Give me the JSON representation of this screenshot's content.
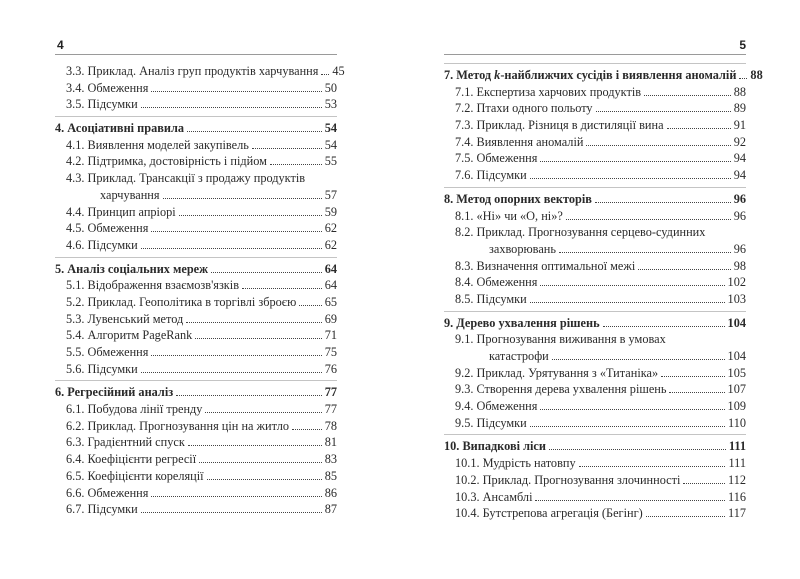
{
  "pages": [
    {
      "folio": "4",
      "sections": [
        {
          "continued": true,
          "items": [
            {
              "title": "3.3. Приклад. Аналіз груп продуктів харчування",
              "page": "45"
            },
            {
              "title": "3.4. Обмеження",
              "page": "50"
            },
            {
              "title": "3.5. Підсумки",
              "page": "53"
            }
          ]
        },
        {
          "heading": {
            "title": "4.  Асоціативні правила",
            "page": "54"
          },
          "items": [
            {
              "title": "4.1. Виявлення моделей закупівель",
              "page": "54"
            },
            {
              "title": "4.2. Підтримка, достовірність і підйом",
              "page": "55"
            },
            {
              "title": "4.3. Приклад. Трансакції з продажу продуктів",
              "title2": "харчування",
              "page": "57"
            },
            {
              "title": "4.4. Принцип апріорі",
              "page": "59"
            },
            {
              "title": "4.5. Обмеження",
              "page": "62"
            },
            {
              "title": "4.6. Підсумки",
              "page": "62"
            }
          ]
        },
        {
          "heading": {
            "title": "5.  Аналіз соціальних мереж",
            "page": "64"
          },
          "items": [
            {
              "title": "5.1. Відображення взаємозв'язків",
              "page": "64"
            },
            {
              "title": "5.2. Приклад. Геополітика в торгівлі зброєю",
              "page": "65"
            },
            {
              "title": "5.3. Лувенський метод",
              "page": "69"
            },
            {
              "title": "5.4. Алгоритм PageRank",
              "page": "71"
            },
            {
              "title": "5.5. Обмеження",
              "page": "75"
            },
            {
              "title": "5.6. Підсумки",
              "page": "76"
            }
          ]
        },
        {
          "heading": {
            "title": "6.  Регресійний аналіз",
            "page": "77"
          },
          "items": [
            {
              "title": "6.1. Побудова лінії тренду",
              "page": "77"
            },
            {
              "title": "6.2. Приклад. Прогнозування цін на житло",
              "page": "78"
            },
            {
              "title": "6.3. Градієнтний спуск",
              "page": "81"
            },
            {
              "title": "6.4. Коефіцієнти регресії",
              "page": "83"
            },
            {
              "title": "6.5. Коефіцієнти кореляції",
              "page": "85"
            },
            {
              "title": "6.6. Обмеження",
              "page": "86"
            },
            {
              "title": "6.7. Підсумки",
              "page": "87"
            }
          ]
        }
      ]
    },
    {
      "folio": "5",
      "sections": [
        {
          "heading": {
            "title": "7.  Метод ",
            "title_em": "k",
            "title_rest": "-найближчих сусідів і виявлення аномалій",
            "page": "88"
          },
          "items": [
            {
              "title": "7.1. Експертиза харчових продуктів",
              "page": "88"
            },
            {
              "title": "7.2. Птахи одного польоту",
              "page": "89"
            },
            {
              "title": "7.3. Приклад. Різниця в дистиляції вина",
              "page": "91"
            },
            {
              "title": "7.4. Виявлення аномалій",
              "page": "92"
            },
            {
              "title": "7.5. Обмеження",
              "page": "94"
            },
            {
              "title": "7.6. Підсумки",
              "page": "94"
            }
          ]
        },
        {
          "heading": {
            "title": "8.  Метод опорних векторів",
            "page": "96"
          },
          "items": [
            {
              "title": "8.1. «Ні» чи «О, ні»?",
              "page": "96"
            },
            {
              "title": "8.2. Приклад. Прогнозування серцево-судинних",
              "title2": "захворювань",
              "page": "96"
            },
            {
              "title": "8.3. Визначення оптимальної межі",
              "page": "98"
            },
            {
              "title": "8.4. Обмеження",
              "page": "102"
            },
            {
              "title": "8.5. Підсумки",
              "page": "103"
            }
          ]
        },
        {
          "heading": {
            "title": "9.  Дерево ухвалення рішень",
            "page": "104"
          },
          "items": [
            {
              "title": "9.1. Прогнозування виживання в умовах",
              "title2": "катастрофи",
              "page": "104"
            },
            {
              "title": "9.2. Приклад. Урятування з «Титаніка»",
              "page": "105"
            },
            {
              "title": "9.3. Створення дерева ухвалення рішень",
              "page": "107"
            },
            {
              "title": "9.4. Обмеження",
              "page": "109"
            },
            {
              "title": "9.5. Підсумки",
              "page": "110"
            }
          ]
        },
        {
          "heading": {
            "title": "10. Випадкові ліси",
            "page": "111"
          },
          "items": [
            {
              "title": "10.1. Мудрість натовпу",
              "page": "111"
            },
            {
              "title": "10.2. Приклад. Прогнозування злочинності",
              "page": "112"
            },
            {
              "title": "10.3. Ансамблі",
              "page": "116"
            },
            {
              "title": "10.4. Бутстрепова агрегація (Бегінг)",
              "page": "117"
            }
          ]
        }
      ]
    }
  ]
}
